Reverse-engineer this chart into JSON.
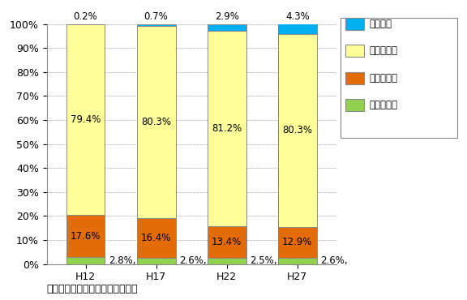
{
  "categories": [
    "H12",
    "H17",
    "H22",
    "H27"
  ],
  "series": [
    {
      "label": "第一次産業",
      "values": [
        2.8,
        2.6,
        2.5,
        2.6
      ],
      "color": "#92d050"
    },
    {
      "label": "第二次産業",
      "values": [
        17.6,
        16.4,
        13.4,
        12.9
      ],
      "color": "#e36c09"
    },
    {
      "label": "第三次産業",
      "values": [
        79.4,
        80.3,
        81.2,
        80.3
      ],
      "color": "#ffff99"
    },
    {
      "label": "分類不能",
      "values": [
        0.2,
        0.7,
        2.9,
        4.3
      ],
      "color": "#00b0f0"
    }
  ],
  "ylim": [
    0,
    100
  ],
  "yticks": [
    0,
    10,
    20,
    30,
    40,
    50,
    60,
    70,
    80,
    90,
    100
  ],
  "yticklabels": [
    "0%",
    "10%",
    "20%",
    "30%",
    "40%",
    "50%",
    "60%",
    "70%",
    "80%",
    "90%",
    "100%"
  ],
  "footnote": "出典：伊東市統計書　（伊東市）",
  "bar_width": 0.55,
  "background_color": "#ffffff",
  "grid_color": "#aaaaaa",
  "label_fontsize": 8.5,
  "legend_fontsize": 8.5,
  "tick_fontsize": 9,
  "footnote_fontsize": 9
}
